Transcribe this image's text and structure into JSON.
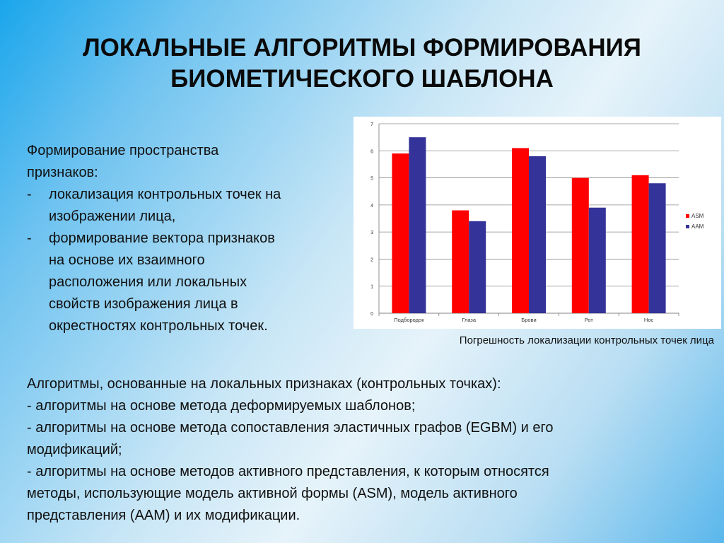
{
  "slide": {
    "title_line1": "ЛОКАЛЬНЫЕ АЛГОРИТМЫ ФОРМИРОВАНИЯ",
    "title_line2": "БИОМЕТИЧЕСКОГО ШАБЛОНА"
  },
  "left": {
    "heading_line1": "Формирование пространства",
    "heading_line2": "признаков:",
    "items": [
      {
        "dash": "-",
        "lines": [
          "локализация контрольных точек на",
          "изображении лица,"
        ]
      },
      {
        "dash": "-",
        "lines": [
          "формирование вектора признаков",
          "на основе их взаимного",
          "расположения или локальных",
          "свойств изображения лица в",
          "окрестностях контрольных точек."
        ]
      }
    ]
  },
  "chart_caption": "Погрешность локализации контрольных точек лица",
  "bottom": {
    "lines": [
      "Алгоритмы, основанные на локальных признаках (контрольных точках):",
      "- алгоритмы на основе метода деформируемых шаблонов;",
      "- алгоритмы на основе метода сопоставления эластичных графов (EGBM) и его",
      "модификаций;",
      "- алгоритмы на основе методов активного представления, к которым относятся",
      "методы, использующие модель активной формы (ASM), модель активного",
      "представления (AAM) и их модификации."
    ]
  },
  "chart_data": {
    "type": "bar",
    "title": "",
    "xlabel": "",
    "ylabel": "",
    "ylim": [
      0,
      7
    ],
    "yticks": [
      "0",
      "1",
      "2",
      "3",
      "4",
      "5",
      "6",
      "7"
    ],
    "grid": true,
    "legend": "right",
    "categories": [
      "Подбородок",
      "Глаза",
      "Брови",
      "Рот",
      "Нос"
    ],
    "series": [
      {
        "name": "ASM",
        "color": "#ff0000",
        "values": [
          5.9,
          3.8,
          6.1,
          5.0,
          5.1
        ]
      },
      {
        "name": "AAM",
        "color": "#333399",
        "values": [
          6.5,
          3.4,
          5.8,
          3.9,
          4.8
        ]
      }
    ]
  }
}
